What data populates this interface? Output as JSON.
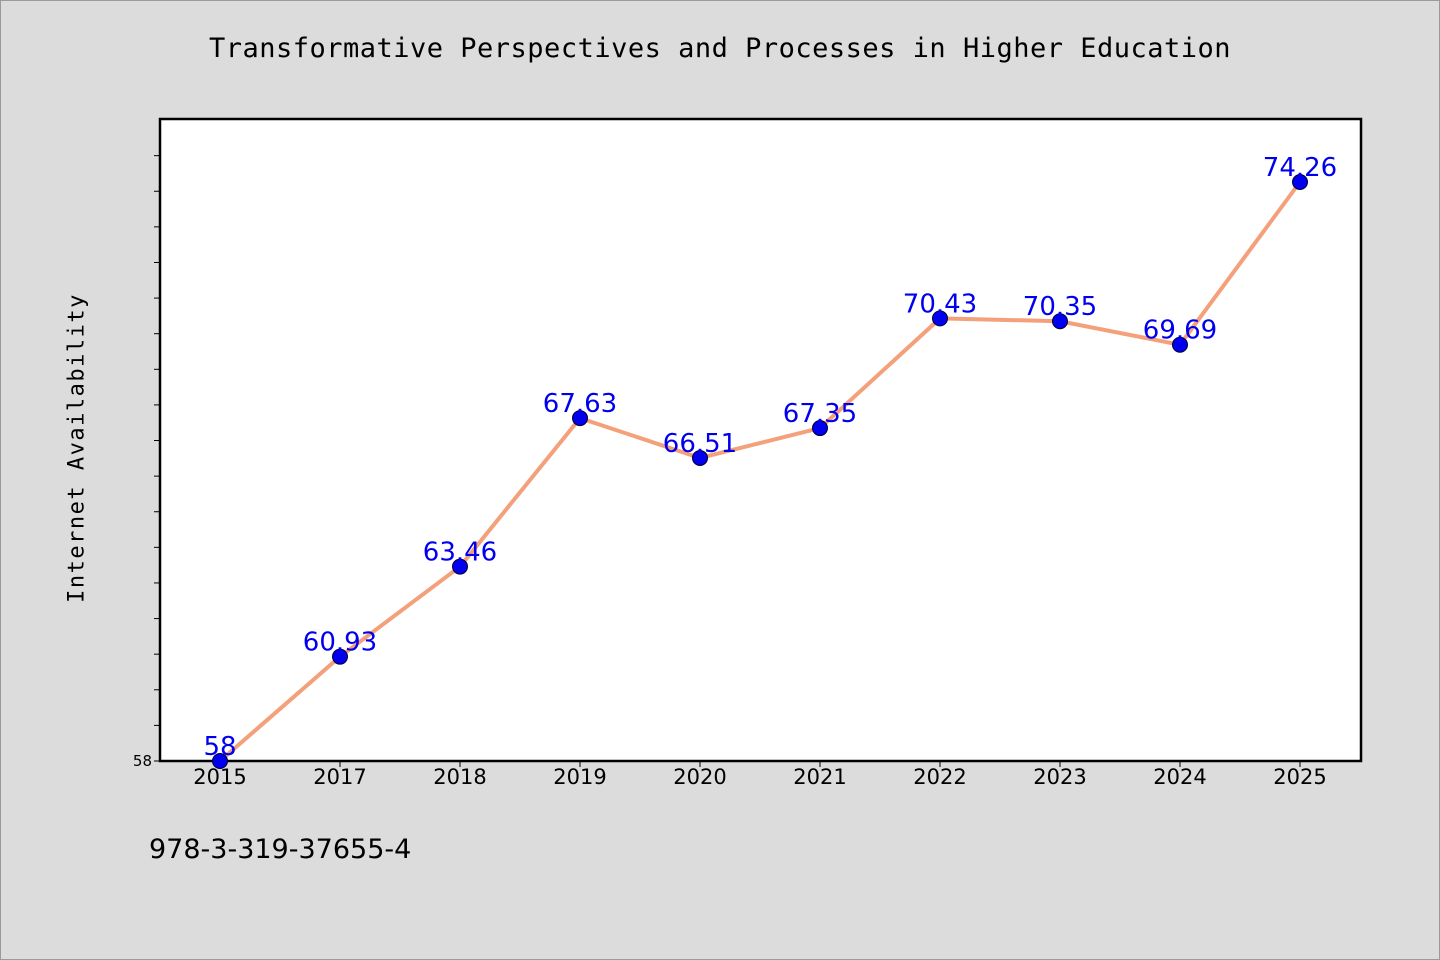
{
  "chart_data": {
    "type": "line",
    "title": "Transformative Perspectives and Processes in Higher Education",
    "ylabel": "Internet Availability",
    "xlabel": "",
    "categories": [
      "2015",
      "2017",
      "2018",
      "2019",
      "2020",
      "2021",
      "2022",
      "2023",
      "2024",
      "2025"
    ],
    "series": [
      {
        "values": [
          58,
          60.93,
          63.46,
          67.63,
          66.51,
          67.35,
          70.43,
          70.35,
          69.69,
          74.26
        ],
        "labels": [
          "58",
          "60.93",
          "63.46",
          "67.63",
          "66.51",
          "67.35",
          "70.43",
          "70.35",
          "69.69",
          "74.26"
        ],
        "line_color": "#f4a07a",
        "marker_color": "#0000ee"
      }
    ],
    "ylim": [
      58,
      76
    ],
    "yticks": [
      58
    ],
    "grid": false,
    "legend": "none",
    "label_color": "#0000ee"
  },
  "footer": {
    "code": "978-3-319-37655-4"
  }
}
